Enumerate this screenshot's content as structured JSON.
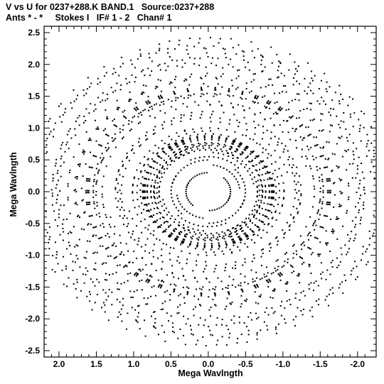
{
  "chart_data": {
    "type": "scatter",
    "title": "V vs U for 0237+288.K BAND.1   Source:0237+288",
    "subtitle": "Ants * - *     Stokes I   IF# 1 - 2   Chan# 1",
    "xlabel": "Mega Wavlngth",
    "ylabel": "Mega Wavlngth",
    "xlim": [
      2.2,
      -2.25
    ],
    "ylim": [
      -2.6,
      2.6
    ],
    "x_ticks": [
      "2.0",
      "1.5",
      "1.0",
      "0.5",
      "0.0",
      "-0.5",
      "-1.0",
      "-1.5",
      "-2.0"
    ],
    "x_tick_values": [
      2.0,
      1.5,
      1.0,
      0.5,
      0.0,
      -0.5,
      -1.0,
      -1.5,
      -2.0
    ],
    "y_ticks": [
      "2.5",
      "2.0",
      "1.5",
      "1.0",
      "0.5",
      "0.0",
      "-0.5",
      "-1.0",
      "-1.5",
      "-2.0",
      "-2.5"
    ],
    "y_tick_values": [
      2.5,
      2.0,
      1.5,
      1.0,
      0.5,
      0.0,
      -0.5,
      -1.0,
      -1.5,
      -2.0,
      -2.5
    ],
    "grid": false,
    "point_color": "#000000",
    "arms": {
      "angles_deg": [
        90,
        210,
        330
      ],
      "lengths": [
        0.12,
        0.22,
        0.35,
        0.48,
        0.62,
        0.78,
        0.95,
        1.12,
        1.3,
        1.48,
        1.66,
        1.82,
        1.97,
        2.12
      ],
      "hour_angle_steps": 34,
      "max_rotation_deg": 36
    }
  }
}
